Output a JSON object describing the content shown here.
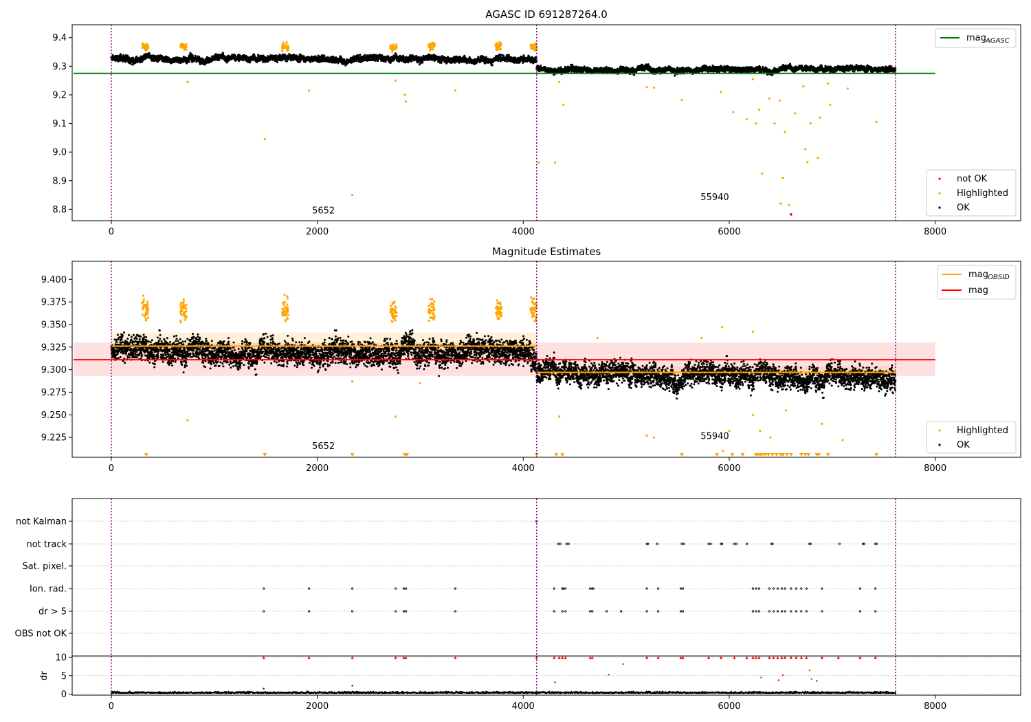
{
  "chart_data": [
    {
      "type": "scatter",
      "title": "AGASC ID 691287264.0",
      "xlim": [
        -380,
        8830
      ],
      "ylim": [
        8.76,
        9.445
      ],
      "x_ticks": [
        "0",
        "2000",
        "4000",
        "6000",
        "8000"
      ],
      "x_tick_values": [
        0,
        2000,
        4000,
        6000,
        8000
      ],
      "y_ticks": [
        "8.8",
        "8.9",
        "9.0",
        "9.1",
        "9.2",
        "9.3",
        "9.4"
      ],
      "y_tick_values": [
        8.8,
        8.9,
        9.0,
        9.1,
        9.2,
        9.3,
        9.4
      ],
      "obs_boundaries": [
        0,
        4130,
        7615
      ],
      "obs_labels": [
        {
          "text": "5652",
          "x": 2060,
          "y": 8.785
        },
        {
          "text": "55940",
          "x": 5860,
          "y": 8.832
        }
      ],
      "reference_line": {
        "name": "mag$_{AGASC}$",
        "label": "mag",
        "sub": "AGASC",
        "y": 9.275,
        "x_range": [
          0,
          8000
        ],
        "color": "#008000"
      },
      "segments": [
        {
          "x_range": [
            0,
            4130
          ],
          "level": 9.327,
          "spread": 0.009
        },
        {
          "x_range": [
            4130,
            7615
          ],
          "level": 9.29,
          "spread": 0.008
        }
      ],
      "highlighted_clusters": [
        [
          330,
          9.37
        ],
        [
          700,
          9.37
        ],
        [
          1690,
          9.367
        ],
        [
          2740,
          9.365
        ],
        [
          3110,
          9.37
        ],
        [
          3760,
          9.37
        ],
        [
          4100,
          9.37
        ]
      ],
      "highlighted_outliers": [
        [
          740,
          9.245
        ],
        [
          1490,
          9.045
        ],
        [
          1920,
          9.215
        ],
        [
          2340,
          8.85
        ],
        [
          2760,
          9.25
        ],
        [
          2850,
          9.2
        ],
        [
          2860,
          9.177
        ],
        [
          3340,
          9.215
        ],
        [
          4150,
          8.963
        ],
        [
          4310,
          8.963
        ],
        [
          4350,
          9.245
        ],
        [
          4390,
          9.165
        ],
        [
          5200,
          9.227
        ],
        [
          5270,
          9.225
        ],
        [
          5540,
          9.182
        ],
        [
          5920,
          9.21
        ],
        [
          6040,
          9.14
        ],
        [
          6170,
          9.115
        ],
        [
          6230,
          9.255
        ],
        [
          6260,
          9.1
        ],
        [
          6290,
          9.148
        ],
        [
          6320,
          8.925
        ],
        [
          6390,
          9.187
        ],
        [
          6440,
          9.1
        ],
        [
          6490,
          9.18
        ],
        [
          6500,
          8.82
        ],
        [
          6520,
          8.91
        ],
        [
          6540,
          9.07
        ],
        [
          6580,
          8.815
        ],
        [
          6640,
          9.135
        ],
        [
          6720,
          9.23
        ],
        [
          6740,
          9.01
        ],
        [
          6760,
          8.965
        ],
        [
          6790,
          9.1
        ],
        [
          6860,
          8.98
        ],
        [
          6880,
          9.12
        ],
        [
          6960,
          9.24
        ],
        [
          6980,
          9.165
        ],
        [
          7150,
          9.222
        ],
        [
          7430,
          9.105
        ]
      ],
      "not_ok_points": [
        [
          6600,
          8.782
        ]
      ],
      "legend": [
        {
          "label": "not OK",
          "color": "#ff0000"
        },
        {
          "label": "Highlighted",
          "color": "#ffa500"
        },
        {
          "label": "OK",
          "color": "#000000"
        }
      ]
    },
    {
      "type": "scatter",
      "title": "Magnitude Estimates",
      "xlim": [
        -380,
        8830
      ],
      "ylim": [
        9.203,
        9.42
      ],
      "x_ticks": [
        "0",
        "2000",
        "4000",
        "6000",
        "8000"
      ],
      "x_tick_values": [
        0,
        2000,
        4000,
        6000,
        8000
      ],
      "y_ticks": [
        "9.225",
        "9.250",
        "9.275",
        "9.300",
        "9.325",
        "9.350",
        "9.375",
        "9.400"
      ],
      "y_tick_values": [
        9.225,
        9.25,
        9.275,
        9.3,
        9.325,
        9.35,
        9.375,
        9.4
      ],
      "obs_boundaries": [
        0,
        4130,
        7615
      ],
      "obs_labels": [
        {
          "text": "5652",
          "x": 2060,
          "y": 9.212
        },
        {
          "text": "55940",
          "x": 5860,
          "y": 9.223
        }
      ],
      "mag_line": {
        "label": "mag",
        "y": 9.311,
        "band": [
          9.293,
          9.33
        ],
        "x_range": [
          0,
          8000
        ],
        "color": "#ff0000"
      },
      "obsid_lines": [
        {
          "x_range": [
            0,
            4130
          ],
          "y": 9.326,
          "band": [
            9.314,
            9.341
          ]
        },
        {
          "x_range": [
            4130,
            7615
          ],
          "y": 9.297,
          "band": [
            9.29,
            9.304
          ]
        }
      ],
      "segments": [
        {
          "x_range": [
            0,
            4130
          ],
          "level": 9.322,
          "spread": 0.012
        },
        {
          "x_range": [
            4130,
            7615
          ],
          "level": 9.295,
          "spread": 0.011
        }
      ],
      "highlighted_clusters": [
        [
          330,
          9.367
        ],
        [
          700,
          9.365
        ],
        [
          1690,
          9.365
        ],
        [
          2740,
          9.364
        ],
        [
          3110,
          9.365
        ],
        [
          3760,
          9.367
        ],
        [
          4100,
          9.368
        ]
      ],
      "highlighted_outliers": [
        [
          740,
          9.244
        ],
        [
          2760,
          9.248
        ],
        [
          2340,
          9.287
        ],
        [
          3000,
          9.285
        ],
        [
          4350,
          9.248
        ],
        [
          5200,
          9.227
        ],
        [
          5270,
          9.225
        ],
        [
          5940,
          9.21
        ],
        [
          6000,
          9.232
        ],
        [
          6230,
          9.25
        ],
        [
          6300,
          9.232
        ],
        [
          6400,
          9.225
        ],
        [
          6550,
          9.255
        ],
        [
          6900,
          9.24
        ],
        [
          7100,
          9.222
        ],
        [
          5930,
          9.347
        ],
        [
          6230,
          9.342
        ],
        [
          5730,
          9.335
        ],
        [
          4720,
          9.335
        ]
      ],
      "clipped_markers": [
        340,
        1490,
        2340,
        2850,
        2870,
        4130,
        4320,
        4380,
        5540,
        5880,
        6030,
        6130,
        6260,
        6280,
        6300,
        6320,
        6350,
        6380,
        6420,
        6460,
        6500,
        6520,
        6560,
        6600,
        6700,
        6740,
        6770,
        6850,
        6870,
        6960,
        7430
      ],
      "legend": [
        {
          "label": "mag",
          "sub": "OBSID",
          "color": "#ffa500",
          "kind": "line"
        },
        {
          "label": "mag",
          "color": "#ff0000",
          "kind": "line"
        }
      ],
      "legend_points": [
        {
          "label": "Highlighted",
          "color": "#ffa500"
        },
        {
          "label": "OK",
          "color": "#000000"
        }
      ]
    },
    {
      "type": "scatter",
      "title": "",
      "xlim": [
        -380,
        8830
      ],
      "x_ticks": [
        "0",
        "2000",
        "4000",
        "6000",
        "8000"
      ],
      "x_tick_values": [
        0,
        2000,
        4000,
        6000,
        8000
      ],
      "obs_boundaries": [
        0,
        4130,
        7615
      ],
      "flag_rows": [
        "not Kalman",
        "not track",
        "Sat. pixel.",
        "Ion. rad.",
        "dr > 5",
        "OBS not OK"
      ],
      "flag_points": {
        "not Kalman": [
          4130
        ],
        "not track": [
          4340,
          4360,
          4420,
          4440,
          5200,
          5210,
          5300,
          5540,
          5560,
          5800,
          5820,
          5920,
          5930,
          6050,
          6070,
          6170,
          6410,
          6420,
          6780,
          6790,
          7070,
          7300,
          7310,
          7420,
          7430
        ],
        "Sat. pixel.": [],
        "Ion. rad.": [
          1480,
          1920,
          2340,
          2760,
          2840,
          2860,
          3340,
          4300,
          4380,
          4390,
          4410,
          4650,
          4670,
          4680,
          5200,
          5310,
          5530,
          5550,
          6230,
          6260,
          6290,
          6390,
          6430,
          6470,
          6510,
          6540,
          6600,
          6650,
          6700,
          6750,
          6900,
          7270,
          7420
        ],
        "dr > 5": [
          1480,
          1920,
          2340,
          2760,
          2840,
          2860,
          3340,
          4300,
          4380,
          4410,
          4650,
          4670,
          4810,
          4950,
          5200,
          5310,
          5530,
          5550,
          6230,
          6260,
          6290,
          6390,
          6430,
          6470,
          6510,
          6540,
          6600,
          6650,
          6700,
          6750,
          6900,
          7270,
          7420
        ],
        "OBS not OK": []
      },
      "dr_axis": {
        "ylabel": "dr",
        "ylim": [
          -0.3,
          10.4
        ],
        "y_ticks": [
          "0",
          "5",
          "10"
        ],
        "y_tick_values": [
          0,
          5,
          10
        ]
      },
      "dr_capped_markers": [
        1480,
        1920,
        2340,
        2760,
        2840,
        2860,
        3340,
        4130,
        4300,
        4350,
        4380,
        4410,
        4650,
        4670,
        5200,
        5310,
        5530,
        5550,
        5800,
        5920,
        6050,
        6170,
        6230,
        6260,
        6290,
        6390,
        6430,
        6470,
        6510,
        6540,
        6600,
        6650,
        6700,
        6750,
        6900,
        7060,
        7270,
        7420
      ],
      "dr_outliers": [
        [
          1480,
          1.5
        ],
        [
          2340,
          2.3
        ],
        [
          4310,
          3.2
        ],
        [
          4830,
          5.3
        ],
        [
          4970,
          8.2
        ],
        [
          6310,
          4.5
        ],
        [
          6480,
          3.8
        ],
        [
          6520,
          5.2
        ],
        [
          6780,
          6.5
        ],
        [
          6800,
          4.1
        ],
        [
          6850,
          3.6
        ]
      ]
    }
  ]
}
